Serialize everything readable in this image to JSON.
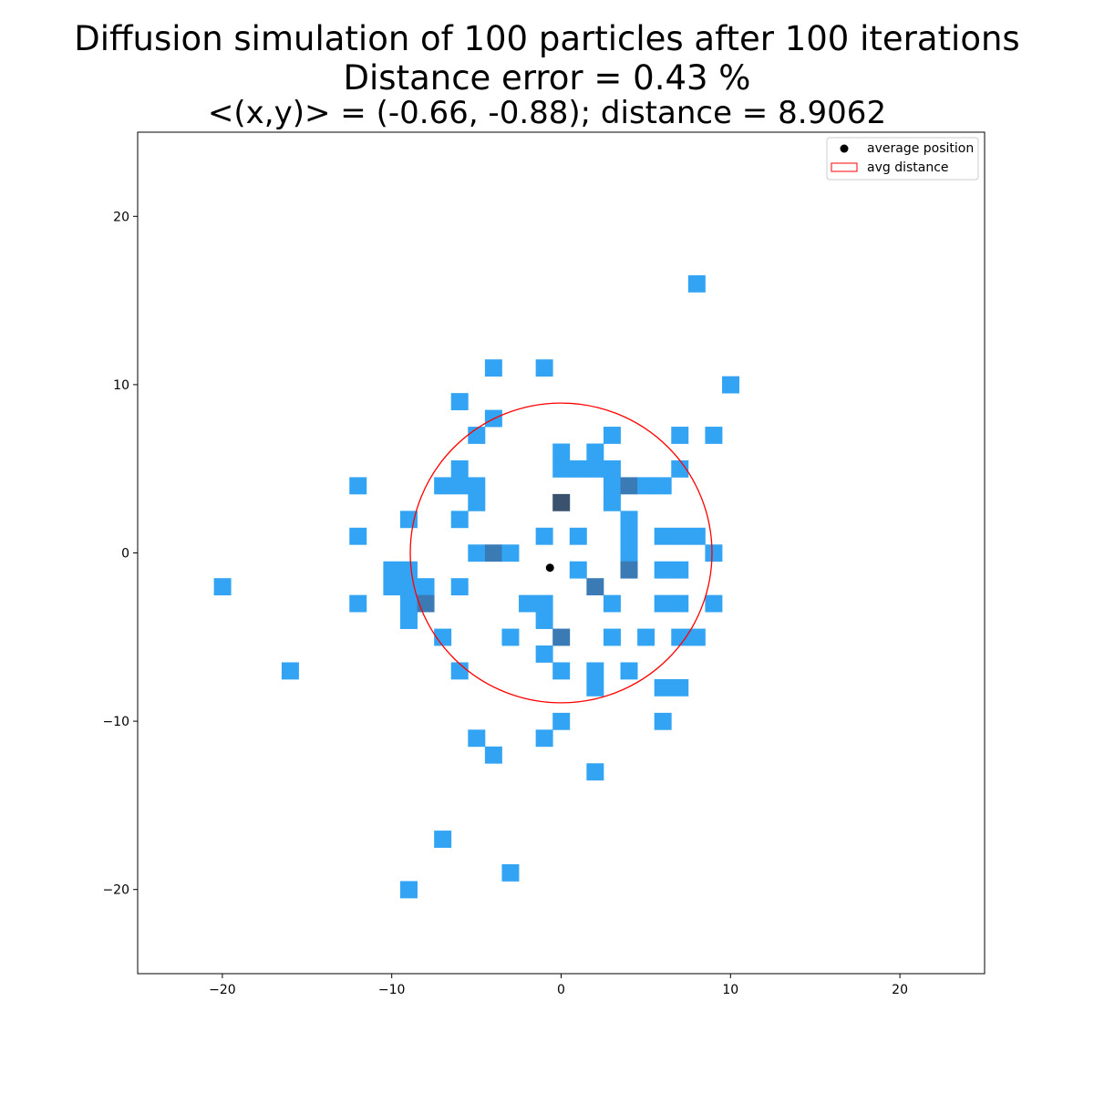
{
  "chart_data": {
    "type": "heatmap",
    "title_lines": [
      "Diffusion simulation of 100 particles after 100 iterations",
      "Distance error = 0.43 %",
      "<(x,y)> = (-0.66, -0.88); distance = 8.9062"
    ],
    "xlabel": "",
    "ylabel": "",
    "xlim": [
      -25,
      25
    ],
    "ylim": [
      -25,
      25
    ],
    "xticks": [
      -20,
      -10,
      0,
      10,
      20
    ],
    "yticks": [
      -20,
      -10,
      0,
      10,
      20
    ],
    "xtick_labels": [
      "−20",
      "−10",
      "0",
      "10",
      "20"
    ],
    "ytick_labels": [
      "−20",
      "−10",
      "0",
      "10",
      "20"
    ],
    "grid": false,
    "legend": {
      "placement": "top-right",
      "entries": [
        {
          "label": "average position",
          "marker": "dot",
          "color": "#000000"
        },
        {
          "label": "avg distance",
          "marker": "rect-outline",
          "color": "#ff0000"
        }
      ]
    },
    "average_position": {
      "x": -0.66,
      "y": -0.88
    },
    "avg_distance_circle": {
      "center": [
        0,
        0
      ],
      "radius": 8.9062,
      "color": "#ff0000"
    },
    "cell_colors": {
      "1": "#33a4f4",
      "2": "#3a7bb5",
      "3": "#3a526e"
    },
    "cells": [
      {
        "x": -20,
        "y": -2,
        "count": 1
      },
      {
        "x": -16,
        "y": -7,
        "count": 1
      },
      {
        "x": -12,
        "y": 4,
        "count": 1
      },
      {
        "x": -12,
        "y": 1,
        "count": 1
      },
      {
        "x": -12,
        "y": -3,
        "count": 1
      },
      {
        "x": -10,
        "y": -1,
        "count": 1
      },
      {
        "x": -10,
        "y": -2,
        "count": 1
      },
      {
        "x": -9,
        "y": 2,
        "count": 1
      },
      {
        "x": -9,
        "y": -1,
        "count": 1
      },
      {
        "x": -9,
        "y": -2,
        "count": 1
      },
      {
        "x": -9,
        "y": -3,
        "count": 1
      },
      {
        "x": -9,
        "y": -4,
        "count": 1
      },
      {
        "x": -9,
        "y": -20,
        "count": 1
      },
      {
        "x": -8,
        "y": -2,
        "count": 1
      },
      {
        "x": -8,
        "y": -3,
        "count": 2
      },
      {
        "x": -7,
        "y": 4,
        "count": 1
      },
      {
        "x": -7,
        "y": -5,
        "count": 1
      },
      {
        "x": -7,
        "y": -17,
        "count": 1
      },
      {
        "x": -6,
        "y": 9,
        "count": 1
      },
      {
        "x": -6,
        "y": 5,
        "count": 1
      },
      {
        "x": -6,
        "y": 4,
        "count": 1
      },
      {
        "x": -6,
        "y": 2,
        "count": 1
      },
      {
        "x": -6,
        "y": -2,
        "count": 1
      },
      {
        "x": -6,
        "y": -7,
        "count": 1
      },
      {
        "x": -5,
        "y": 7,
        "count": 1
      },
      {
        "x": -5,
        "y": 4,
        "count": 1
      },
      {
        "x": -5,
        "y": 3,
        "count": 1
      },
      {
        "x": -5,
        "y": 0,
        "count": 1
      },
      {
        "x": -5,
        "y": -11,
        "count": 1
      },
      {
        "x": -4,
        "y": 11,
        "count": 1
      },
      {
        "x": -4,
        "y": 8,
        "count": 1
      },
      {
        "x": -4,
        "y": 0,
        "count": 2
      },
      {
        "x": -4,
        "y": -12,
        "count": 1
      },
      {
        "x": -3,
        "y": 0,
        "count": 1
      },
      {
        "x": -3,
        "y": -5,
        "count": 1
      },
      {
        "x": -3,
        "y": -19,
        "count": 1
      },
      {
        "x": -2,
        "y": -3,
        "count": 1
      },
      {
        "x": -1,
        "y": 11,
        "count": 1
      },
      {
        "x": -1,
        "y": 1,
        "count": 1
      },
      {
        "x": -1,
        "y": -3,
        "count": 1
      },
      {
        "x": -1,
        "y": -4,
        "count": 1
      },
      {
        "x": -1,
        "y": -6,
        "count": 1
      },
      {
        "x": -1,
        "y": -11,
        "count": 1
      },
      {
        "x": 0,
        "y": 6,
        "count": 1
      },
      {
        "x": 0,
        "y": 5,
        "count": 1
      },
      {
        "x": 0,
        "y": 3,
        "count": 3
      },
      {
        "x": 0,
        "y": -5,
        "count": 2
      },
      {
        "x": 0,
        "y": -7,
        "count": 1
      },
      {
        "x": 0,
        "y": -10,
        "count": 1
      },
      {
        "x": 1,
        "y": 5,
        "count": 1
      },
      {
        "x": 1,
        "y": 1,
        "count": 1
      },
      {
        "x": 1,
        "y": -1,
        "count": 1
      },
      {
        "x": 2,
        "y": 6,
        "count": 1
      },
      {
        "x": 2,
        "y": 5,
        "count": 1
      },
      {
        "x": 2,
        "y": -2,
        "count": 2
      },
      {
        "x": 2,
        "y": -7,
        "count": 1
      },
      {
        "x": 2,
        "y": -8,
        "count": 1
      },
      {
        "x": 2,
        "y": -13,
        "count": 1
      },
      {
        "x": 3,
        "y": 7,
        "count": 1
      },
      {
        "x": 3,
        "y": 5,
        "count": 1
      },
      {
        "x": 3,
        "y": 4,
        "count": 1
      },
      {
        "x": 3,
        "y": 3,
        "count": 1
      },
      {
        "x": 3,
        "y": -3,
        "count": 1
      },
      {
        "x": 3,
        "y": -5,
        "count": 1
      },
      {
        "x": 4,
        "y": 4,
        "count": 2
      },
      {
        "x": 4,
        "y": 2,
        "count": 1
      },
      {
        "x": 4,
        "y": 1,
        "count": 1
      },
      {
        "x": 4,
        "y": 0,
        "count": 1
      },
      {
        "x": 4,
        "y": -1,
        "count": 2
      },
      {
        "x": 4,
        "y": -7,
        "count": 1
      },
      {
        "x": 5,
        "y": 4,
        "count": 1
      },
      {
        "x": 5,
        "y": -5,
        "count": 1
      },
      {
        "x": 6,
        "y": 4,
        "count": 1
      },
      {
        "x": 6,
        "y": 1,
        "count": 1
      },
      {
        "x": 6,
        "y": -1,
        "count": 1
      },
      {
        "x": 6,
        "y": -3,
        "count": 1
      },
      {
        "x": 6,
        "y": -8,
        "count": 1
      },
      {
        "x": 6,
        "y": -10,
        "count": 1
      },
      {
        "x": 7,
        "y": 7,
        "count": 1
      },
      {
        "x": 7,
        "y": 5,
        "count": 1
      },
      {
        "x": 7,
        "y": 1,
        "count": 1
      },
      {
        "x": 7,
        "y": -1,
        "count": 1
      },
      {
        "x": 7,
        "y": -3,
        "count": 1
      },
      {
        "x": 7,
        "y": -5,
        "count": 1
      },
      {
        "x": 7,
        "y": -8,
        "count": 1
      },
      {
        "x": 8,
        "y": 16,
        "count": 1
      },
      {
        "x": 8,
        "y": 1,
        "count": 1
      },
      {
        "x": 8,
        "y": -5,
        "count": 1
      },
      {
        "x": 9,
        "y": 7,
        "count": 1
      },
      {
        "x": 9,
        "y": 0,
        "count": 1
      },
      {
        "x": 9,
        "y": -3,
        "count": 1
      },
      {
        "x": 10,
        "y": 10,
        "count": 1
      }
    ]
  }
}
